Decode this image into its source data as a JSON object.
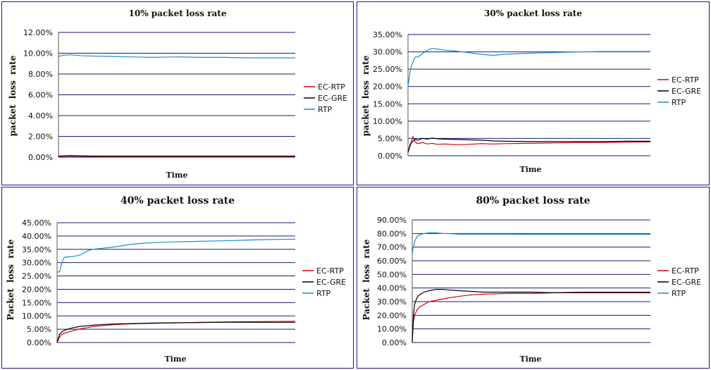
{
  "series_colors": {
    "EC-RTP": "#d40000",
    "EC-GRE": "#000000",
    "RTP": "#1f8dc7"
  },
  "chart_data": [
    {
      "type": "line",
      "title": "10% packet loss rate",
      "xlabel": "Time",
      "ylabel": "packet loss rate",
      "ylim": [
        0,
        12
      ],
      "yticks": [
        "0.00%",
        "2.00%",
        "4.00%",
        "6.00%",
        "8.00%",
        "10.00%",
        "12.00%"
      ],
      "grid": true,
      "legend": "right",
      "x": [
        0,
        0.02,
        0.05,
        0.1,
        0.2,
        0.3,
        0.4,
        0.5,
        0.6,
        0.7,
        0.8,
        0.9,
        1.0
      ],
      "series": [
        {
          "name": "EC-RTP",
          "values": [
            0.05,
            0.08,
            0.1,
            0.08,
            0.05,
            0.05,
            0.05,
            0.05,
            0.05,
            0.05,
            0.05,
            0.05,
            0.05
          ]
        },
        {
          "name": "EC-GRE",
          "values": [
            0.1,
            0.12,
            0.15,
            0.12,
            0.1,
            0.1,
            0.1,
            0.1,
            0.1,
            0.1,
            0.1,
            0.1,
            0.1
          ]
        },
        {
          "name": "RTP",
          "values": [
            9.7,
            9.8,
            9.85,
            9.75,
            9.7,
            9.65,
            9.6,
            9.65,
            9.6,
            9.6,
            9.55,
            9.55,
            9.55
          ]
        }
      ]
    },
    {
      "type": "line",
      "title": "30% packet loss rate",
      "xlabel": "Time",
      "ylabel": "packet loss rate",
      "ylim": [
        0,
        35
      ],
      "yticks": [
        "0.00%",
        "5.00%",
        "10.00%",
        "15.00%",
        "20.00%",
        "25.00%",
        "30.00%",
        "35.00%"
      ],
      "grid": true,
      "legend": "right",
      "x": [
        0,
        0.01,
        0.02,
        0.03,
        0.04,
        0.06,
        0.08,
        0.1,
        0.12,
        0.15,
        0.2,
        0.25,
        0.3,
        0.35,
        0.4,
        0.5,
        0.6,
        0.7,
        0.8,
        0.9,
        1.0
      ],
      "series": [
        {
          "name": "EC-RTP",
          "values": [
            1,
            3,
            5.5,
            4,
            3.5,
            3.8,
            3.4,
            3.6,
            3.3,
            3.4,
            3.2,
            3.3,
            3.5,
            3.4,
            3.5,
            3.6,
            3.7,
            3.8,
            3.8,
            3.9,
            4.0
          ]
        },
        {
          "name": "EC-GRE",
          "values": [
            1,
            3.5,
            4.2,
            4.8,
            4.5,
            5.0,
            4.8,
            5.1,
            4.9,
            4.8,
            4.7,
            4.6,
            4.5,
            4.3,
            4.2,
            4.1,
            4.1,
            4.1,
            4.1,
            4.2,
            4.2
          ]
        },
        {
          "name": "RTP",
          "values": [
            20,
            25,
            27,
            28.5,
            28.5,
            29.5,
            30.5,
            31,
            30.8,
            30.5,
            30.2,
            29.8,
            29.3,
            29,
            29.3,
            29.6,
            29.8,
            30,
            30.1,
            30.1,
            30.1
          ]
        }
      ]
    },
    {
      "type": "line",
      "title": "40% packet loss rate",
      "xlabel": "Time",
      "ylabel": "Packet loss rate",
      "ylim": [
        0,
        45
      ],
      "yticks": [
        "0.00%",
        "5.00%",
        "10.00%",
        "15.00%",
        "20.00%",
        "25.00%",
        "30.00%",
        "35.00%",
        "40.00%",
        "45.00%"
      ],
      "grid": true,
      "legend": "right",
      "x": [
        0,
        0.01,
        0.02,
        0.03,
        0.05,
        0.08,
        0.1,
        0.13,
        0.15,
        0.2,
        0.25,
        0.3,
        0.35,
        0.4,
        0.5,
        0.6,
        0.7,
        0.8,
        0.9,
        1.0
      ],
      "series": [
        {
          "name": "EC-RTP",
          "values": [
            0,
            2,
            3,
            3.5,
            4,
            4.8,
            5.2,
            5.6,
            6,
            6.4,
            6.8,
            7,
            7.1,
            7.2,
            7.4,
            7.6,
            7.7,
            7.8,
            7.9,
            8
          ]
        },
        {
          "name": "EC-GRE",
          "values": [
            0,
            3,
            4,
            4.5,
            5.2,
            5.8,
            6.1,
            6.3,
            6.5,
            6.8,
            7,
            7.1,
            7.2,
            7.3,
            7.4,
            7.5,
            7.6,
            7.6,
            7.6,
            7.6
          ]
        },
        {
          "name": "RTP",
          "values": [
            26.5,
            26.5,
            30,
            32,
            32.2,
            32.5,
            33,
            34.5,
            35,
            35.5,
            36,
            36.8,
            37.2,
            37.5,
            37.8,
            38,
            38.2,
            38.5,
            38.7,
            38.8
          ]
        }
      ]
    },
    {
      "type": "line",
      "title": "80% packet loss rate",
      "xlabel": "Time",
      "ylabel": "Packet loss rate",
      "ylim": [
        0,
        90
      ],
      "yticks": [
        "0.00%",
        "10.00%",
        "20.00%",
        "30.00%",
        "40.00%",
        "50.00%",
        "60.00%",
        "70.00%",
        "80.00%",
        "90.00%"
      ],
      "grid": true,
      "legend": "right",
      "x": [
        0,
        0.005,
        0.01,
        0.02,
        0.03,
        0.05,
        0.07,
        0.1,
        0.13,
        0.16,
        0.2,
        0.25,
        0.3,
        0.4,
        0.5,
        0.6,
        0.7,
        0.8,
        0.9,
        1.0
      ],
      "series": [
        {
          "name": "EC-RTP",
          "values": [
            0,
            15,
            20,
            24,
            26,
            28,
            30,
            31,
            32,
            33,
            34,
            35,
            35.5,
            36,
            36,
            36.5,
            37,
            37,
            37,
            37
          ]
        },
        {
          "name": "EC-GRE",
          "values": [
            0,
            20,
            28,
            33,
            35,
            37,
            38,
            39,
            39,
            38.5,
            38,
            37.5,
            37,
            37,
            37,
            36.5,
            36.5,
            36.5,
            36.5,
            36.5
          ]
        },
        {
          "name": "RTP",
          "values": [
            65,
            70,
            74,
            78,
            79,
            80,
            80.5,
            80.5,
            80,
            79.8,
            79.5,
            79.5,
            79.5,
            79.5,
            79.3,
            79.3,
            79.3,
            79.3,
            79.3,
            79.3
          ]
        }
      ]
    }
  ]
}
